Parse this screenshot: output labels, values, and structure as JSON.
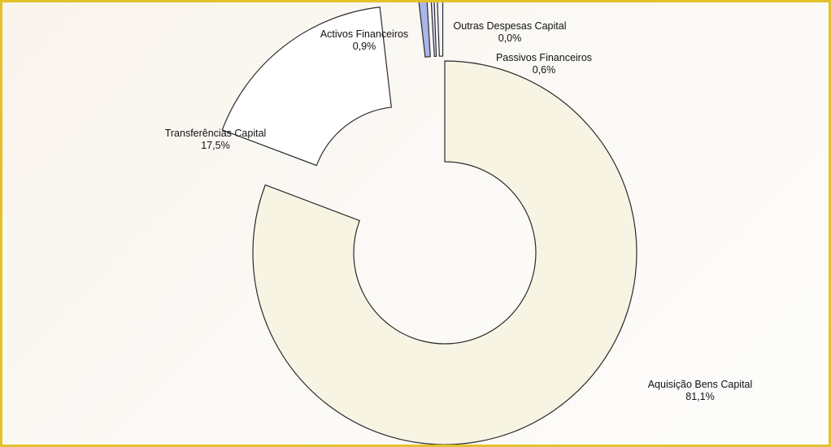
{
  "chart_data": {
    "type": "pie",
    "style": "exploded-doughnut",
    "title": "",
    "slices": [
      {
        "name": "Aquisição Bens Capital",
        "pct_label": "81,1%",
        "value": 81.1,
        "color": "#f8f4e4"
      },
      {
        "name": "Transferências Capital",
        "pct_label": "17,5%",
        "value": 17.5,
        "color": "#ffffff"
      },
      {
        "name": "Activos Financeiros",
        "pct_label": "0,9%",
        "value": 0.9,
        "color": "#aab6ea"
      },
      {
        "name": "Outras Despesas Capital",
        "pct_label": "0,0%",
        "value": 0.0,
        "color": "#dcdcff"
      },
      {
        "name": "Passivos Financeiros",
        "pct_label": "0,6%",
        "value": 0.6,
        "color": "#f2f2ff"
      }
    ],
    "legend": "none",
    "frame_border_color": "#e2c22a"
  }
}
